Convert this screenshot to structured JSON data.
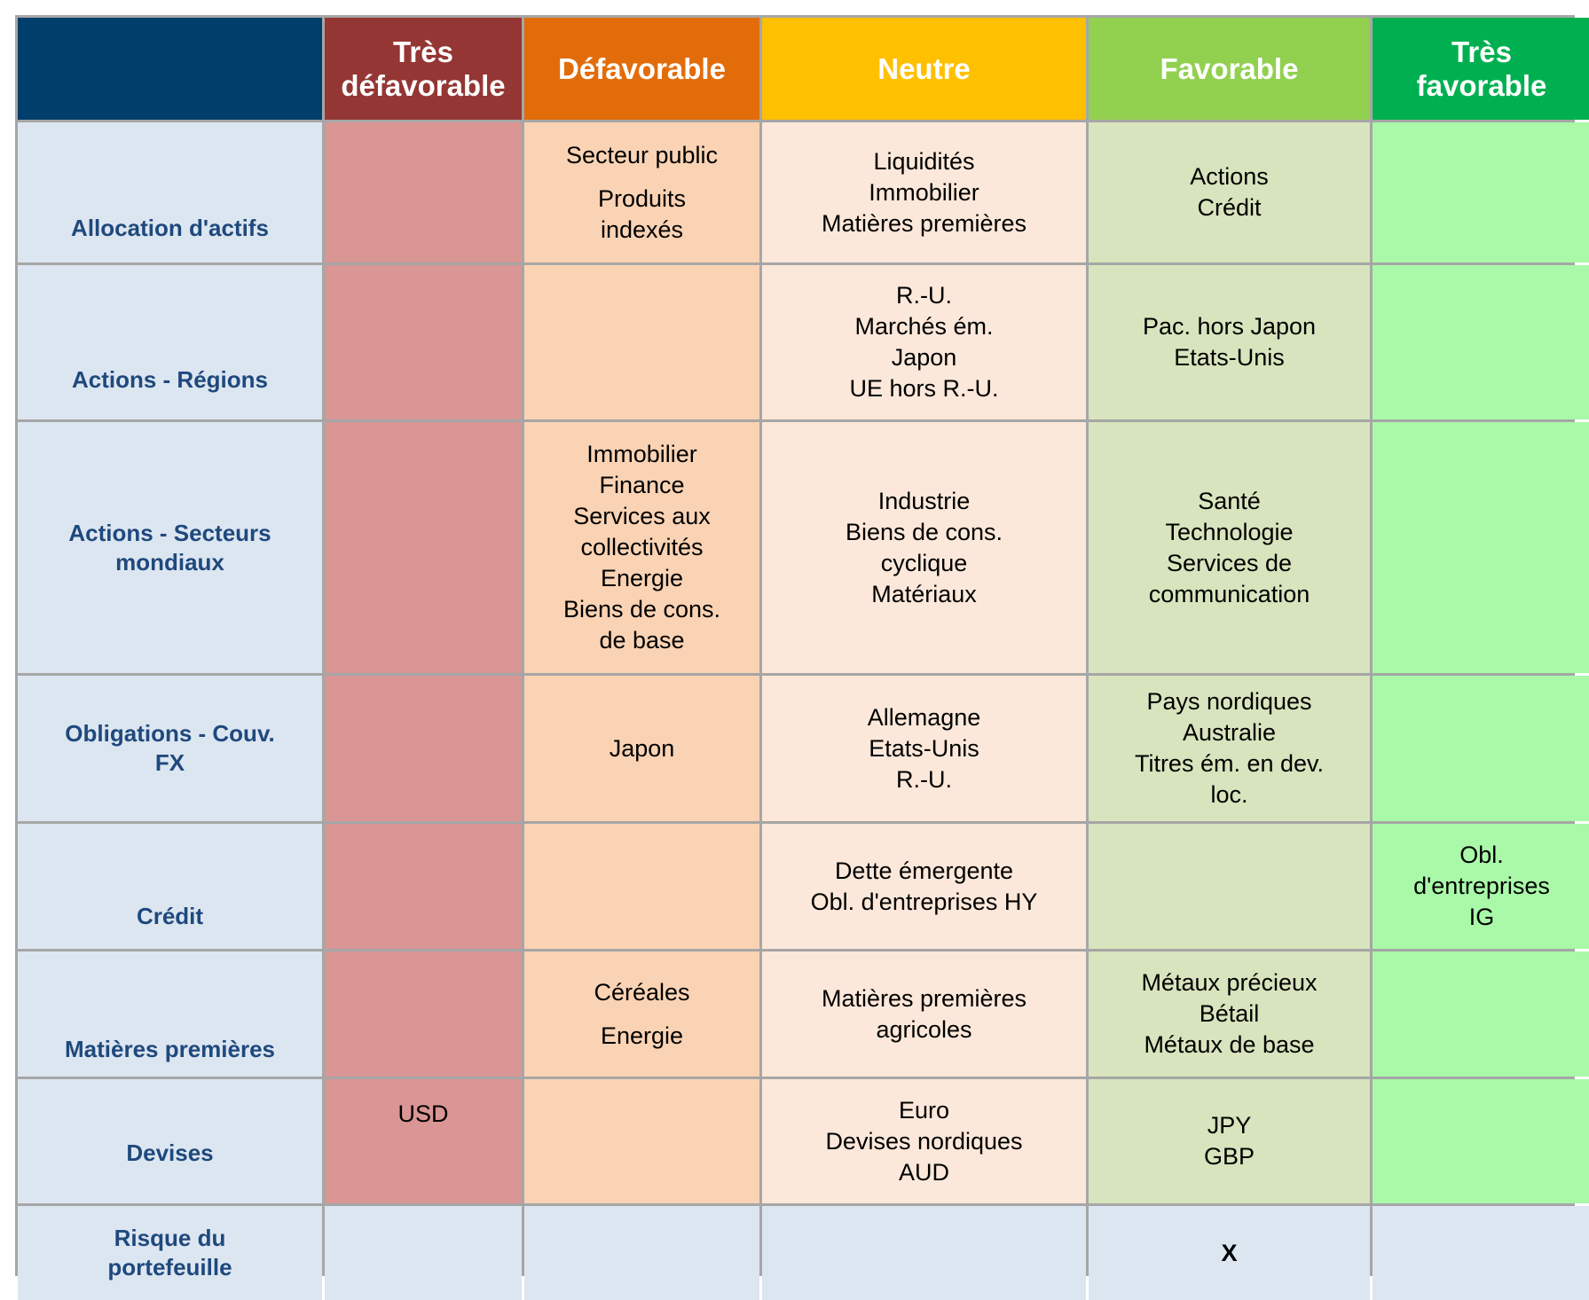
{
  "colors": {
    "header": [
      "#003F6B",
      "#943634",
      "#E36C0A",
      "#FFC000",
      "#92D050",
      "#00B050"
    ],
    "body": [
      "#DCE6F1",
      "#D99694",
      "#FAD3B4",
      "#FCE8DA",
      "#D7E4BD",
      "#A9F9A9"
    ],
    "label_text": "#1F497D",
    "border": "#A6A6A6"
  },
  "headers": [
    "",
    "Très défavorable",
    "Défavorable",
    "Neutre",
    "Favorable",
    "Très favorable"
  ],
  "rows": [
    {
      "label": "Allocation d'actifs",
      "cells": [
        [],
        [
          "Secteur public",
          "",
          "Produits",
          "indexés"
        ],
        [
          "Liquidités",
          "Immobilier",
          "Matières premières"
        ],
        [
          "Actions",
          "Crédit"
        ],
        []
      ]
    },
    {
      "label": "Actions - Régions",
      "cells": [
        [],
        [],
        [
          "R.-U.",
          "Marchés ém.",
          "Japon",
          "UE hors R.-U."
        ],
        [
          "Pac. hors Japon",
          "Etats-Unis"
        ],
        []
      ]
    },
    {
      "label": "Actions - Secteurs mondiaux",
      "cells": [
        [],
        [
          "Immobilier",
          "Finance",
          "Services aux",
          "collectivités",
          "Energie",
          "Biens de cons.",
          "de base"
        ],
        [
          "Industrie",
          "Biens de cons.",
          "cyclique",
          "Matériaux"
        ],
        [
          "Santé",
          "Technologie",
          "Services de",
          "communication"
        ],
        []
      ]
    },
    {
      "label": "Obligations - Couv. FX",
      "cells": [
        [],
        [
          "Japon"
        ],
        [
          "Allemagne",
          "Etats-Unis",
          "R.-U."
        ],
        [
          "Pays nordiques",
          "Australie",
          "Titres ém. en dev.",
          "loc."
        ],
        []
      ]
    },
    {
      "label": "Crédit",
      "cells": [
        [],
        [],
        [
          "Dette émergente",
          "Obl. d'entreprises HY"
        ],
        [],
        [
          "Obl.",
          "d'entreprises",
          "IG"
        ]
      ]
    },
    {
      "label": "Matières premières",
      "cells": [
        [],
        [
          "Céréales",
          "",
          "Energie"
        ],
        [
          "Matières premières",
          "agricoles"
        ],
        [
          "Métaux précieux",
          "Bétail",
          "Métaux de base"
        ],
        []
      ]
    },
    {
      "label": "Devises",
      "cells": [
        [
          "USD"
        ],
        [],
        [
          "Euro",
          "Devises nordiques",
          "AUD"
        ],
        [
          "JPY",
          "GBP"
        ],
        []
      ]
    },
    {
      "label": "Risque du portefeuille",
      "cells": [
        [],
        [],
        [],
        [
          "X"
        ],
        []
      ]
    }
  ]
}
